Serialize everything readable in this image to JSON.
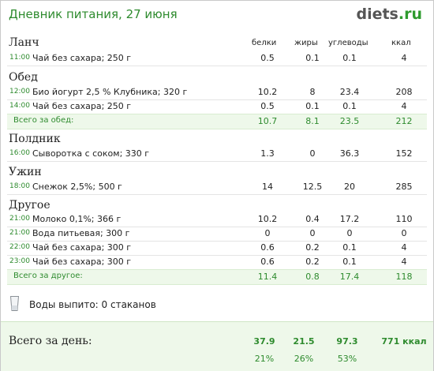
{
  "header": {
    "title": "Дневник питания, 27 июня",
    "logo_main": "diets",
    "logo_tld": ".ru"
  },
  "columns": {
    "protein": "белки",
    "fat": "жиры",
    "carbs": "углеводы",
    "kcal": "ккал"
  },
  "meals": [
    {
      "name": "Ланч",
      "items": [
        {
          "time": "11:00",
          "food": "Чай без сахара; 250 г",
          "protein": "0.5",
          "fat": "0.1",
          "carbs": "0.1",
          "kcal": "4"
        }
      ]
    },
    {
      "name": "Обед",
      "items": [
        {
          "time": "12:00",
          "food": "Био йогурт 2,5 % Клубника; 320 г",
          "protein": "10.2",
          "fat": "8",
          "carbs": "23.4",
          "kcal": "208"
        },
        {
          "time": "14:00",
          "food": "Чай без сахара; 250 г",
          "protein": "0.5",
          "fat": "0.1",
          "carbs": "0.1",
          "kcal": "4"
        }
      ],
      "total": {
        "label": "Всего за обед:",
        "protein": "10.7",
        "fat": "8.1",
        "carbs": "23.5",
        "kcal": "212"
      }
    },
    {
      "name": "Полдник",
      "items": [
        {
          "time": "16:00",
          "food": "Сыворотка с соком; 330 г",
          "protein": "1.3",
          "fat": "0",
          "carbs": "36.3",
          "kcal": "152"
        }
      ]
    },
    {
      "name": "Ужин",
      "items": [
        {
          "time": "18:00",
          "food": "Снежок 2,5%; 500 г",
          "protein": "14",
          "fat": "12.5",
          "carbs": "20",
          "kcal": "285"
        }
      ]
    },
    {
      "name": "Другое",
      "items": [
        {
          "time": "21:00",
          "food": "Молоко 0,1%; 366 г",
          "protein": "10.2",
          "fat": "0.4",
          "carbs": "17.2",
          "kcal": "110"
        },
        {
          "time": "21:00",
          "food": "Вода питьевая; 300 г",
          "protein": "0",
          "fat": "0",
          "carbs": "0",
          "kcal": "0"
        },
        {
          "time": "22:00",
          "food": "Чай без сахара; 300 г",
          "protein": "0.6",
          "fat": "0.2",
          "carbs": "0.1",
          "kcal": "4"
        },
        {
          "time": "23:00",
          "food": "Чай без сахара; 300 г",
          "protein": "0.6",
          "fat": "0.2",
          "carbs": "0.1",
          "kcal": "4"
        }
      ],
      "total": {
        "label": "Всего за другое:",
        "protein": "11.4",
        "fat": "0.8",
        "carbs": "17.4",
        "kcal": "118"
      }
    }
  ],
  "water": {
    "icon": "glass-icon",
    "text": "Воды выпито: 0 стаканов"
  },
  "day_total": {
    "label": "Всего за день:",
    "protein": "37.9",
    "fat": "21.5",
    "carbs": "97.3",
    "kcal": "771 ккал",
    "protein_pct": "21%",
    "fat_pct": "26%",
    "carbs_pct": "53%"
  },
  "colors": {
    "accent": "#2e8b2e",
    "total_bg": "#eef8ea"
  }
}
